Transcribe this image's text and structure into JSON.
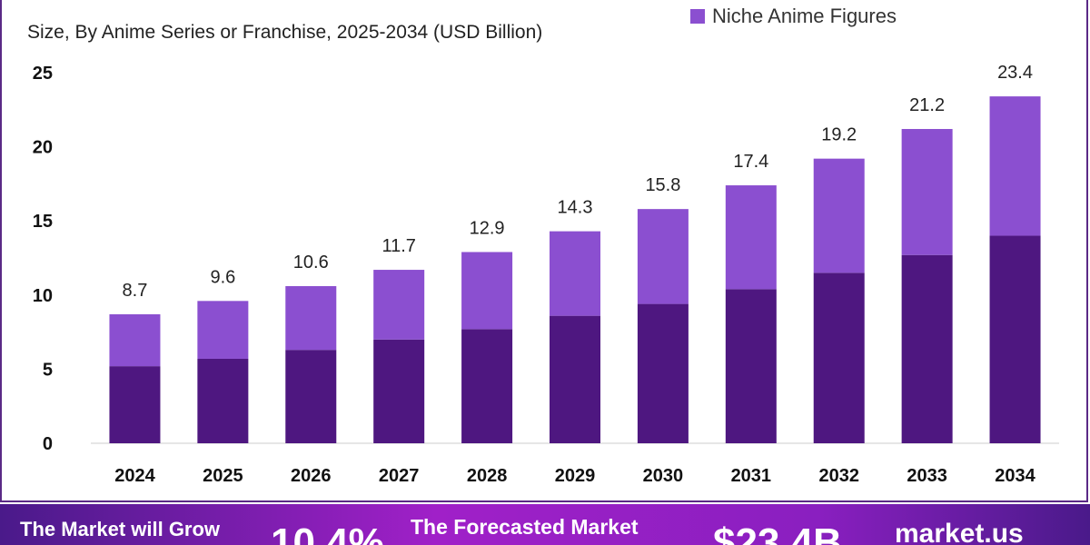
{
  "chart_data": {
    "type": "bar",
    "stacked": true,
    "subtitle": "Size, By Anime Series or Franchise, 2025-2034 (USD Billion)",
    "categories": [
      "2024",
      "2025",
      "2026",
      "2027",
      "2028",
      "2029",
      "2030",
      "2031",
      "2032",
      "2033",
      "2034"
    ],
    "series": [
      {
        "values": [
          5.2,
          5.7,
          6.3,
          7.0,
          7.7,
          8.6,
          9.4,
          10.4,
          11.5,
          12.7,
          14.0
        ],
        "color": "#4e1780"
      },
      {
        "name": "Niche Anime Figures",
        "values": [
          3.5,
          3.9,
          4.3,
          4.7,
          5.2,
          5.7,
          6.4,
          7.0,
          7.7,
          8.5,
          9.4
        ],
        "color": "#8b4fd0"
      }
    ],
    "totals": [
      "8.7",
      "9.6",
      "10.6",
      "11.7",
      "12.9",
      "14.3",
      "15.8",
      "17.4",
      "19.2",
      "21.2",
      "23.4"
    ],
    "yticks": [
      0,
      5,
      10,
      15,
      20,
      25
    ],
    "ylim": [
      0,
      25
    ],
    "grid": false,
    "legend_position": "top-right"
  },
  "banner": {
    "grow_label": "The Market will Grow",
    "cagr": "10.4%",
    "forecast_label": "The Forecasted Market",
    "forecast_value": "$23.4B",
    "brand": "market.us"
  }
}
